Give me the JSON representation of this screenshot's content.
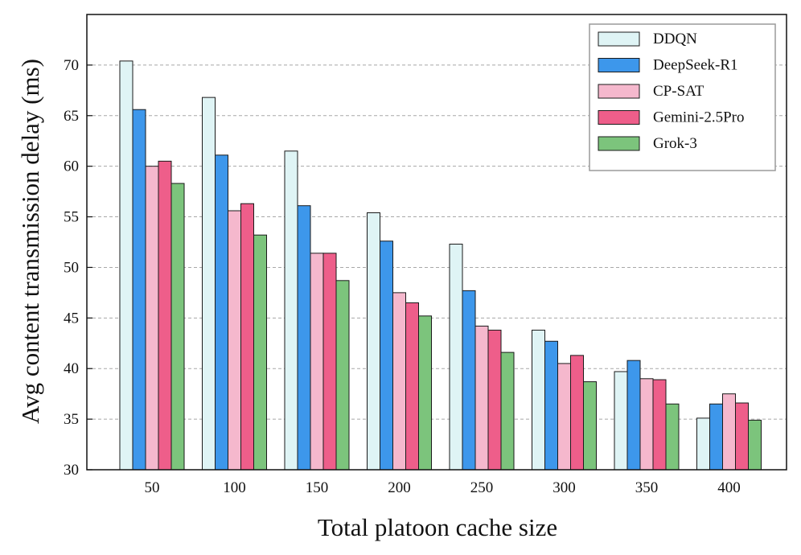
{
  "chart_data": {
    "type": "bar",
    "title": "",
    "xlabel": "Total platoon cache size",
    "ylabel": "Avg content transmission delay (ms)",
    "ylim": [
      30,
      75
    ],
    "yticks": [
      30,
      35,
      40,
      45,
      50,
      55,
      60,
      65,
      70
    ],
    "grid": "horizontal-dashed",
    "legend_position": "top-right",
    "categories": [
      "50",
      "100",
      "150",
      "200",
      "250",
      "300",
      "350",
      "400"
    ],
    "series": [
      {
        "name": "DDQN",
        "color": "#dff4f5",
        "values": [
          70.4,
          66.8,
          61.5,
          55.4,
          52.3,
          43.8,
          39.7,
          35.1
        ]
      },
      {
        "name": "DeepSeek-R1",
        "color": "#3d97eb",
        "values": [
          65.6,
          61.1,
          56.1,
          52.6,
          47.7,
          42.7,
          40.8,
          36.5
        ]
      },
      {
        "name": "CP-SAT",
        "color": "#f5b8cd",
        "values": [
          60.0,
          55.6,
          51.4,
          47.5,
          44.2,
          40.5,
          39.0,
          37.5
        ]
      },
      {
        "name": "Gemini-2.5Pro",
        "color": "#ee5e8a",
        "values": [
          60.5,
          56.3,
          51.4,
          46.5,
          43.8,
          41.3,
          38.9,
          36.6
        ]
      },
      {
        "name": "Grok-3",
        "color": "#7cc47c",
        "values": [
          58.3,
          53.2,
          48.7,
          45.2,
          41.6,
          38.7,
          36.5,
          34.9
        ]
      }
    ]
  }
}
